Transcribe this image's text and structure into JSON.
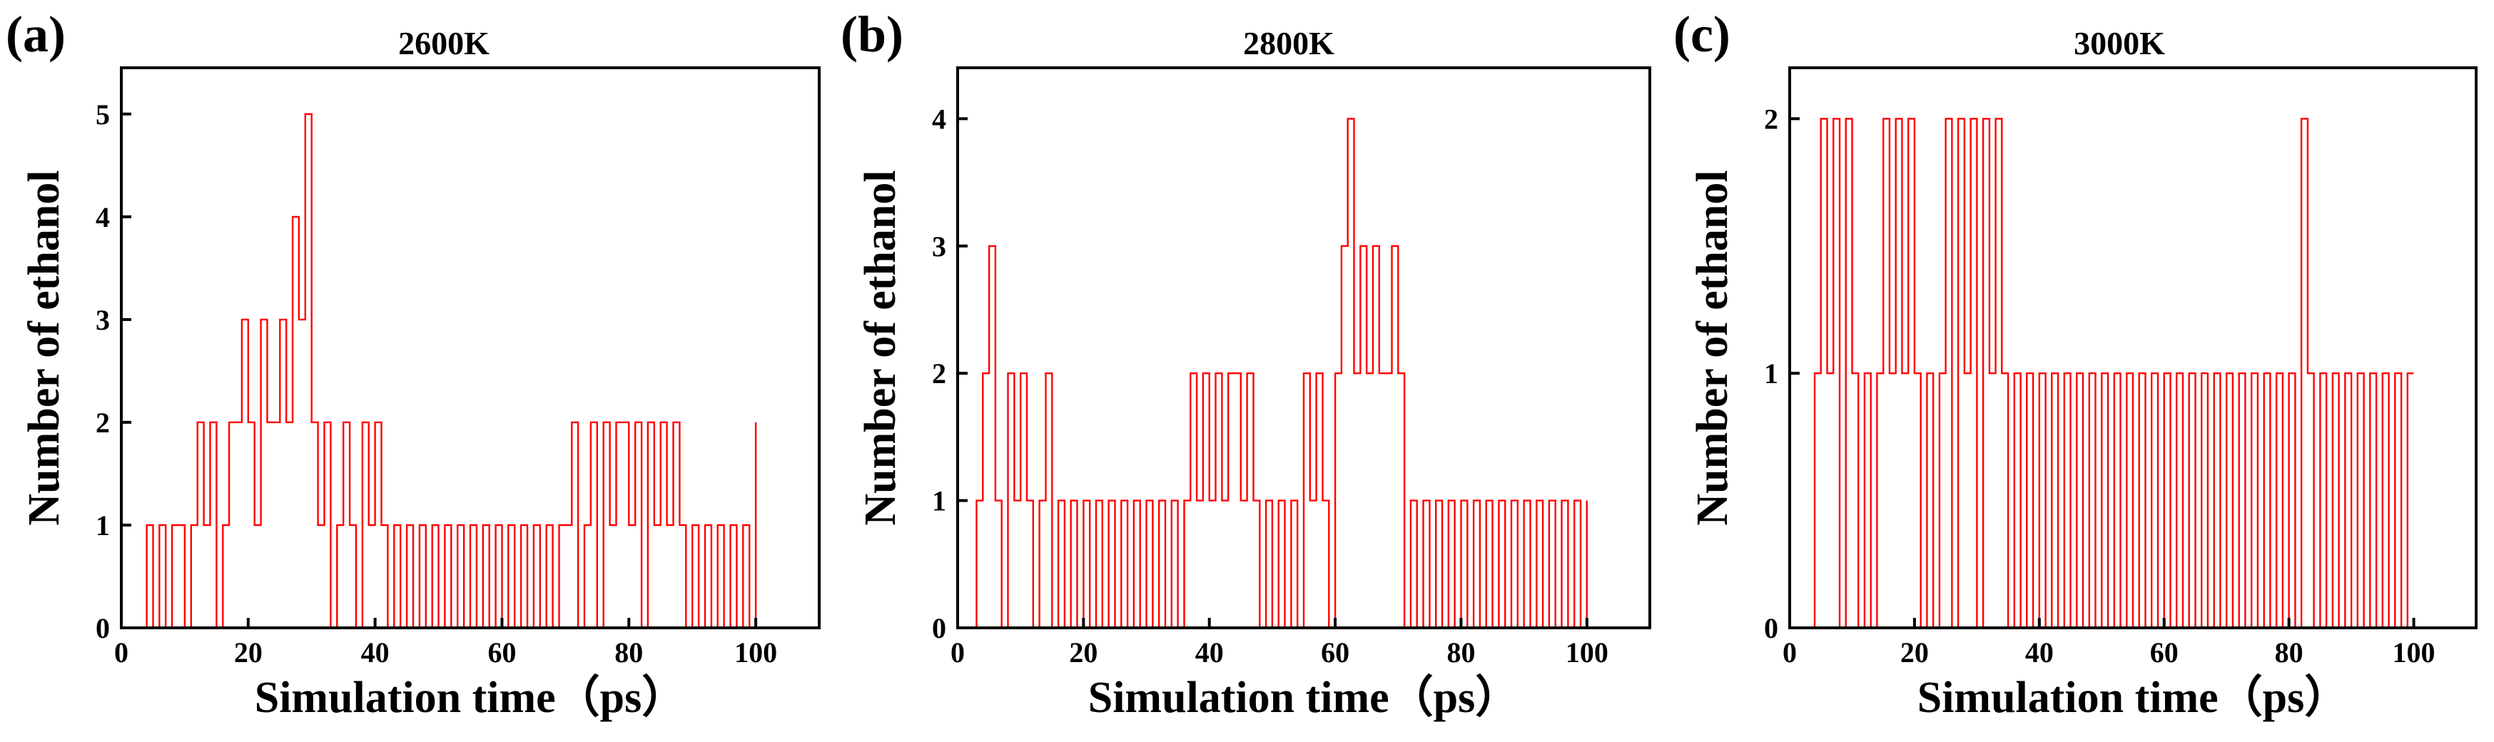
{
  "figure": {
    "accent_color": "#ff0000",
    "panels": [
      {
        "letter": "(a)",
        "title": "2600K"
      },
      {
        "letter": "(b)",
        "title": "2800K"
      },
      {
        "letter": "(c)",
        "title": "3000K"
      }
    ]
  },
  "chart_data": [
    {
      "type": "line",
      "style": "step",
      "title": "2600K",
      "panel_label": "(a)",
      "xlabel": "Simulation time（ps）",
      "ylabel": "Number of ethanol",
      "xlim": [
        0,
        110
      ],
      "ylim": [
        0,
        5.45
      ],
      "x_ticks": [
        0,
        20,
        40,
        60,
        80,
        100
      ],
      "y_ticks": [
        0,
        1,
        2,
        3,
        4,
        5
      ],
      "color": "#ff0000",
      "x": [
        3,
        4,
        5,
        6,
        7,
        8,
        9,
        10,
        11,
        12,
        13,
        14,
        15,
        16,
        17,
        18,
        19,
        20,
        21,
        22,
        23,
        24,
        25,
        26,
        27,
        28,
        29,
        30,
        31,
        32,
        33,
        34,
        35,
        36,
        37,
        38,
        39,
        40,
        41,
        42,
        43,
        44,
        45,
        46,
        47,
        48,
        49,
        50,
        51,
        52,
        53,
        54,
        55,
        56,
        57,
        58,
        59,
        60,
        61,
        62,
        63,
        64,
        65,
        66,
        67,
        68,
        69,
        70,
        71,
        72,
        73,
        74,
        75,
        76,
        77,
        78,
        79,
        80,
        81,
        82,
        83,
        84,
        85,
        86,
        87,
        88,
        89,
        90,
        91,
        92,
        93,
        94,
        95,
        96,
        97,
        98,
        99,
        100
      ],
      "values": [
        0,
        1,
        0,
        1,
        0,
        1,
        1,
        0,
        1,
        2,
        1,
        2,
        0,
        1,
        2,
        2,
        3,
        2,
        1,
        3,
        2,
        2,
        3,
        2,
        4,
        3,
        5,
        2,
        1,
        2,
        0,
        1,
        2,
        1,
        0,
        2,
        1,
        2,
        1,
        0,
        1,
        0,
        1,
        0,
        1,
        0,
        1,
        0,
        1,
        0,
        1,
        0,
        1,
        0,
        1,
        0,
        1,
        0,
        1,
        0,
        1,
        0,
        1,
        0,
        1,
        0,
        1,
        1,
        2,
        0,
        1,
        2,
        0,
        2,
        1,
        2,
        2,
        1,
        2,
        0,
        2,
        1,
        2,
        1,
        2,
        1,
        0,
        1,
        0,
        1,
        0,
        1,
        0,
        1,
        0,
        1,
        0,
        2
      ]
    },
    {
      "type": "line",
      "style": "step",
      "title": "2800K",
      "panel_label": "(b)",
      "xlabel": "Simulation time（ps）",
      "ylabel": "Number of ethanol",
      "xlim": [
        0,
        110
      ],
      "ylim": [
        0,
        4.4
      ],
      "x_ticks": [
        0,
        20,
        40,
        60,
        80,
        100
      ],
      "y_ticks": [
        0,
        1,
        2,
        3,
        4
      ],
      "color": "#ff0000",
      "x": [
        2,
        3,
        4,
        5,
        6,
        7,
        8,
        9,
        10,
        11,
        12,
        13,
        14,
        15,
        16,
        17,
        18,
        19,
        20,
        21,
        22,
        23,
        24,
        25,
        26,
        27,
        28,
        29,
        30,
        31,
        32,
        33,
        34,
        35,
        36,
        37,
        38,
        39,
        40,
        41,
        42,
        43,
        44,
        45,
        46,
        47,
        48,
        49,
        50,
        51,
        52,
        53,
        54,
        55,
        56,
        57,
        58,
        59,
        60,
        61,
        62,
        63,
        64,
        65,
        66,
        67,
        68,
        69,
        70,
        71,
        72,
        73,
        74,
        75,
        76,
        77,
        78,
        79,
        80,
        81,
        82,
        83,
        84,
        85,
        86,
        87,
        88,
        89,
        90,
        91,
        92,
        93,
        94,
        95,
        96,
        97,
        98,
        99,
        100
      ],
      "values": [
        0,
        1,
        2,
        3,
        1,
        0,
        2,
        1,
        2,
        1,
        0,
        1,
        2,
        0,
        1,
        0,
        1,
        0,
        1,
        0,
        1,
        0,
        1,
        0,
        1,
        0,
        1,
        0,
        1,
        0,
        1,
        0,
        1,
        0,
        1,
        2,
        1,
        2,
        1,
        2,
        1,
        2,
        2,
        1,
        2,
        1,
        0,
        1,
        0,
        1,
        0,
        1,
        0,
        2,
        1,
        2,
        1,
        0,
        2,
        3,
        4,
        2,
        3,
        2,
        3,
        2,
        2,
        3,
        2,
        0,
        1,
        0,
        1,
        0,
        1,
        0,
        1,
        0,
        1,
        0,
        1,
        0,
        1,
        0,
        1,
        0,
        1,
        0,
        1,
        0,
        1,
        0,
        1,
        0,
        1,
        0,
        1,
        0,
        1
      ]
    },
    {
      "type": "line",
      "style": "step",
      "title": "3000K",
      "panel_label": "(c)",
      "xlabel": "Simulation time（ps）",
      "ylabel": "Number of ethanol",
      "xlim": [
        0,
        110
      ],
      "ylim": [
        0,
        2.2
      ],
      "x_ticks": [
        0,
        20,
        40,
        60,
        80,
        100
      ],
      "y_ticks": [
        0,
        1,
        2
      ],
      "color": "#ff0000",
      "x": [
        3,
        4,
        5,
        6,
        7,
        8,
        9,
        10,
        11,
        12,
        13,
        14,
        15,
        16,
        17,
        18,
        19,
        20,
        21,
        22,
        23,
        24,
        25,
        26,
        27,
        28,
        29,
        30,
        31,
        32,
        33,
        34,
        35,
        36,
        37,
        38,
        39,
        40,
        41,
        42,
        43,
        44,
        45,
        46,
        47,
        48,
        49,
        50,
        51,
        52,
        53,
        54,
        55,
        56,
        57,
        58,
        59,
        60,
        61,
        62,
        63,
        64,
        65,
        66,
        67,
        68,
        69,
        70,
        71,
        72,
        73,
        74,
        75,
        76,
        77,
        78,
        79,
        80,
        81,
        82,
        83,
        84,
        85,
        86,
        87,
        88,
        89,
        90,
        91,
        92,
        93,
        94,
        95,
        96,
        97,
        98,
        99,
        100
      ],
      "values": [
        0,
        1,
        2,
        1,
        2,
        0,
        2,
        1,
        0,
        1,
        0,
        1,
        2,
        1,
        2,
        1,
        2,
        1,
        0,
        1,
        0,
        1,
        2,
        0,
        2,
        1,
        2,
        0,
        2,
        1,
        2,
        1,
        0,
        1,
        0,
        1,
        0,
        1,
        0,
        1,
        0,
        1,
        0,
        1,
        0,
        1,
        0,
        1,
        0,
        1,
        0,
        1,
        0,
        1,
        0,
        1,
        0,
        1,
        0,
        1,
        0,
        1,
        0,
        1,
        0,
        1,
        0,
        1,
        0,
        1,
        0,
        1,
        0,
        1,
        0,
        1,
        0,
        1,
        0,
        2,
        1,
        0,
        1,
        0,
        1,
        0,
        1,
        0,
        1,
        0,
        1,
        0,
        1,
        0,
        1,
        0,
        1,
        1
      ]
    }
  ]
}
